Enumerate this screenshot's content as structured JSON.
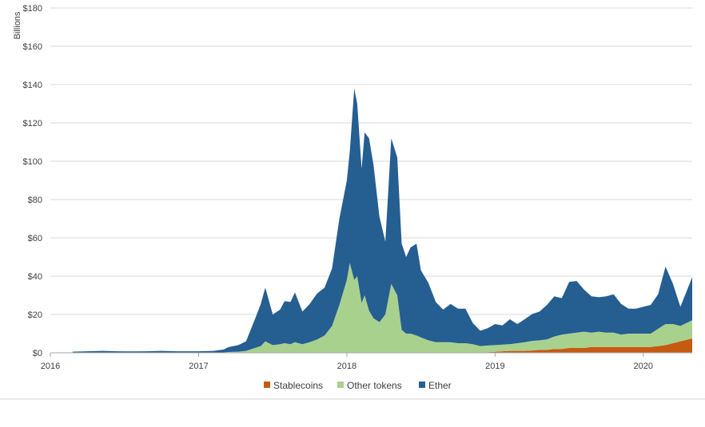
{
  "chart_data": {
    "type": "area",
    "stacked": true,
    "title": "",
    "ylabel": "Billions",
    "xlabel": "",
    "ylim": [
      0,
      180
    ],
    "xlim": [
      2016.0,
      2020.33
    ],
    "yticks": [
      0,
      20,
      40,
      60,
      80,
      100,
      120,
      140,
      160,
      180
    ],
    "ytick_labels": [
      "$0",
      "$20",
      "$40",
      "$60",
      "$80",
      "$100",
      "$120",
      "$140",
      "$160",
      "$180"
    ],
    "xticks": [
      2016,
      2017,
      2018,
      2019,
      2020
    ],
    "xtick_labels": [
      "2016",
      "2017",
      "2018",
      "2019",
      "2020"
    ],
    "grid": "horizontal",
    "legend_position": "bottom",
    "colors": {
      "Stablecoins": "#c55a11",
      "Other tokens": "#a9d18e",
      "Ether": "#255e91"
    },
    "x": [
      2016.15,
      2016.25,
      2016.35,
      2016.45,
      2016.55,
      2016.65,
      2016.75,
      2016.85,
      2016.95,
      2017.0,
      2017.1,
      2017.17,
      2017.2,
      2017.27,
      2017.32,
      2017.38,
      2017.42,
      2017.45,
      2017.5,
      2017.55,
      2017.58,
      2017.62,
      2017.65,
      2017.7,
      2017.75,
      2017.8,
      2017.85,
      2017.9,
      2017.95,
      2018.0,
      2018.02,
      2018.05,
      2018.07,
      2018.1,
      2018.12,
      2018.15,
      2018.18,
      2018.22,
      2018.26,
      2018.3,
      2018.34,
      2018.37,
      2018.4,
      2018.43,
      2018.47,
      2018.5,
      2018.55,
      2018.6,
      2018.65,
      2018.7,
      2018.75,
      2018.8,
      2018.85,
      2018.9,
      2018.95,
      2019.0,
      2019.05,
      2019.1,
      2019.15,
      2019.2,
      2019.25,
      2019.3,
      2019.35,
      2019.4,
      2019.45,
      2019.5,
      2019.55,
      2019.6,
      2019.65,
      2019.7,
      2019.75,
      2019.8,
      2019.85,
      2019.9,
      2019.95,
      2020.0,
      2020.05,
      2020.1,
      2020.15,
      2020.2,
      2020.25,
      2020.33
    ],
    "series": [
      {
        "name": "Stablecoins",
        "values": [
          0,
          0,
          0,
          0,
          0,
          0,
          0,
          0,
          0,
          0,
          0,
          0,
          0,
          0,
          0,
          0,
          0,
          0,
          0,
          0,
          0,
          0,
          0,
          0,
          0,
          0,
          0,
          0,
          0,
          0,
          0,
          0,
          0,
          0,
          0,
          0,
          0,
          0,
          0,
          0,
          0,
          0,
          0,
          0,
          0,
          0,
          0,
          0,
          0,
          0,
          0,
          0,
          0,
          0,
          0.3,
          0.5,
          0.8,
          1.0,
          1.0,
          1.0,
          1.2,
          1.5,
          1.5,
          2.0,
          2.0,
          2.5,
          2.5,
          2.5,
          3.0,
          3.0,
          3.0,
          3.0,
          3.0,
          3.0,
          3.0,
          3.0,
          3.0,
          3.5,
          4.0,
          5.0,
          6.0,
          7.5
        ]
      },
      {
        "name": "Other tokens",
        "values": [
          0,
          0,
          0,
          0,
          0,
          0,
          0,
          0,
          0,
          0,
          0,
          0.2,
          0.4,
          0.6,
          1.0,
          2.5,
          3.5,
          6.0,
          4.0,
          4.5,
          5.0,
          4.5,
          5.5,
          4.5,
          5.5,
          7.0,
          9.0,
          14.0,
          25.0,
          38.0,
          47.0,
          38.0,
          40.0,
          26.0,
          30.0,
          22.0,
          18.0,
          16.0,
          20.0,
          36.0,
          30.0,
          12.0,
          10.0,
          10.0,
          9.0,
          8.0,
          6.5,
          5.5,
          5.5,
          5.5,
          5.0,
          5.0,
          4.5,
          3.5,
          3.5,
          3.5,
          3.5,
          3.5,
          4.0,
          4.5,
          5.0,
          5.0,
          5.5,
          6.5,
          7.5,
          7.5,
          8.0,
          8.5,
          7.5,
          8.0,
          7.5,
          7.5,
          6.5,
          7.0,
          7.0,
          7.0,
          7.0,
          9.0,
          11.0,
          10.0,
          8.0,
          9.5
        ]
      },
      {
        "name": "Ether",
        "values": [
          0.6,
          0.8,
          1.0,
          0.8,
          0.7,
          0.8,
          1.0,
          0.8,
          0.8,
          0.8,
          1.0,
          1.5,
          2.5,
          3.5,
          5.0,
          15.0,
          22.0,
          28.0,
          16.0,
          18.0,
          22.0,
          22.0,
          26.0,
          17.0,
          20.0,
          24.0,
          25.0,
          30.0,
          45.0,
          52.0,
          58.0,
          100.0,
          90.0,
          70.0,
          85.0,
          90.0,
          80.0,
          55.0,
          38.0,
          76.0,
          72.0,
          45.0,
          40.0,
          45.0,
          48.0,
          35.0,
          30.0,
          21.0,
          17.0,
          20.0,
          18.0,
          18.0,
          11.0,
          8.0,
          9.0,
          11.0,
          10.0,
          13.0,
          10.0,
          12.0,
          14.0,
          15.0,
          18.0,
          21.0,
          19.0,
          27.0,
          27.0,
          22.0,
          19.0,
          18.0,
          19.0,
          20.0,
          16.0,
          13.0,
          13.0,
          14.0,
          15.0,
          18.0,
          30.0,
          21.0,
          10.0,
          22.5
        ]
      }
    ]
  }
}
